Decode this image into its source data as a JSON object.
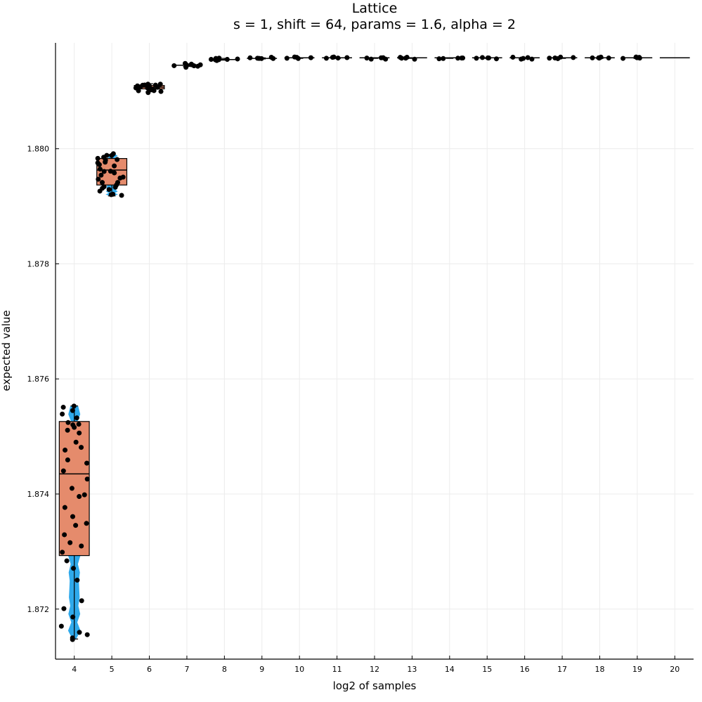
{
  "chart_data": {
    "type": "box",
    "title": "Lattice",
    "subtitle": "s = 1, shift = 64, params = 1.6, alpha = 2",
    "xlabel": "log2 of samples",
    "ylabel": "expected value",
    "categories": [
      "4",
      "5",
      "6",
      "7",
      "8",
      "9",
      "10",
      "11",
      "12",
      "13",
      "14",
      "15",
      "16",
      "17",
      "18",
      "19",
      "20"
    ],
    "ylim": [
      1.87113,
      1.88184
    ],
    "yticks": [
      "1.872",
      "1.874",
      "1.876",
      "1.878",
      "1.880"
    ],
    "grid": true,
    "colors": {
      "box_fill": "#e58b6c",
      "violin_fill": "#0a9ae8",
      "points": "#000000",
      "grid": "#ececec"
    },
    "boxes": [
      {
        "x": "4",
        "min": 1.87148,
        "q1": 1.87293,
        "median": 1.87435,
        "q3": 1.87526,
        "max": 1.87553
      },
      {
        "x": "5",
        "min": 1.87918,
        "q1": 1.87937,
        "median": 1.87963,
        "q3": 1.87983,
        "max": 1.8799
      },
      {
        "x": "6",
        "min": 1.88099,
        "q1": 1.88104,
        "median": 1.88107,
        "q3": 1.8811,
        "max": 1.88113
      },
      {
        "x": "7",
        "min": 1.88143,
        "q1": 1.88144,
        "median": 1.88145,
        "q3": 1.88146,
        "max": 1.88147
      },
      {
        "x": "8",
        "min": 1.88154,
        "q1": 1.88155,
        "median": 1.88155,
        "q3": 1.88156,
        "max": 1.88157
      },
      {
        "x": "9",
        "min": 1.88156,
        "q1": 1.88157,
        "median": 1.88157,
        "q3": 1.88157,
        "max": 1.88158
      },
      {
        "x": "10",
        "min": 1.88157,
        "q1": 1.88157,
        "median": 1.88158,
        "q3": 1.88158,
        "max": 1.88158
      },
      {
        "x": "11",
        "min": 1.88157,
        "q1": 1.88157,
        "median": 1.88158,
        "q3": 1.88158,
        "max": 1.88158
      },
      {
        "x": "12",
        "min": 1.88157,
        "q1": 1.88157,
        "median": 1.88158,
        "q3": 1.88158,
        "max": 1.88158
      },
      {
        "x": "13",
        "min": 1.88157,
        "q1": 1.88157,
        "median": 1.88158,
        "q3": 1.88158,
        "max": 1.88158
      },
      {
        "x": "14",
        "min": 1.88157,
        "q1": 1.88157,
        "median": 1.88158,
        "q3": 1.88158,
        "max": 1.88158
      },
      {
        "x": "15",
        "min": 1.88157,
        "q1": 1.88157,
        "median": 1.88158,
        "q3": 1.88158,
        "max": 1.88158
      },
      {
        "x": "16",
        "min": 1.88157,
        "q1": 1.88157,
        "median": 1.88158,
        "q3": 1.88158,
        "max": 1.88158
      },
      {
        "x": "17",
        "min": 1.88157,
        "q1": 1.88157,
        "median": 1.88158,
        "q3": 1.88158,
        "max": 1.88158
      },
      {
        "x": "18",
        "min": 1.88157,
        "q1": 1.88157,
        "median": 1.88158,
        "q3": 1.88158,
        "max": 1.88158
      },
      {
        "x": "19",
        "min": 1.88157,
        "q1": 1.88157,
        "median": 1.88158,
        "q3": 1.88158,
        "max": 1.88158
      },
      {
        "x": "20",
        "min": 1.88158,
        "q1": 1.88158,
        "median": 1.88158,
        "q3": 1.88158,
        "max": 1.88158
      }
    ],
    "points": {
      "4": [
        1.87553,
        1.8755,
        1.87545,
        1.8754,
        1.87532,
        1.87525,
        1.8752,
        1.87515,
        1.87505,
        1.8749,
        1.87475,
        1.87455,
        1.8744,
        1.87425,
        1.8741,
        1.87395,
        1.87378,
        1.8736,
        1.87345,
        1.8733,
        1.87315,
        1.873,
        1.87285,
        1.8727,
        1.8725,
        1.87215,
        1.872,
        1.87185,
        1.8717,
        1.8716,
        1.87155,
        1.8715,
        1.87148,
        1.8752,
        1.8751,
        1.8748,
        1.8746,
        1.874,
        1.8735,
        1.8731
      ],
      "5": [
        1.8799,
        1.87988,
        1.87985,
        1.87982,
        1.87978,
        1.87975,
        1.8797,
        1.87966,
        1.87962,
        1.87958,
        1.87955,
        1.8795,
        1.87946,
        1.87942,
        1.87938,
        1.87935,
        1.8793,
        1.87925,
        1.87922,
        1.87918,
        1.87987,
        1.8798,
        1.87972,
        1.8796,
        1.87948,
        1.8794,
        1.87932,
        1.87928,
        1.8792,
        1.87984
      ],
      "6": [
        1.88113,
        1.88112,
        1.88111,
        1.8811,
        1.88109,
        1.88108,
        1.88107,
        1.88106,
        1.88105,
        1.88104,
        1.88103,
        1.88102,
        1.88101,
        1.881,
        1.88099,
        1.88112,
        1.8811,
        1.88108,
        1.88106,
        1.88104
      ],
      "7": [
        1.88147,
        1.88146,
        1.88146,
        1.88145,
        1.88145,
        1.88144,
        1.88144,
        1.88143,
        1.88146,
        1.88145
      ],
      "8": [
        1.88157,
        1.88156,
        1.88156,
        1.88155,
        1.88155,
        1.88154,
        1.88156,
        1.88155
      ],
      "9": [
        1.88158,
        1.88157,
        1.88157,
        1.88157,
        1.88156,
        1.88157
      ],
      "10": [
        1.88158,
        1.88158,
        1.88157,
        1.88157,
        1.88158
      ],
      "11": [
        1.88158,
        1.88158,
        1.88157,
        1.88157,
        1.88158
      ],
      "12": [
        1.88158,
        1.88158,
        1.88157,
        1.88157,
        1.88158
      ],
      "13": [
        1.88158,
        1.88158,
        1.88157,
        1.88157,
        1.88158
      ],
      "14": [
        1.88158,
        1.88158,
        1.88157,
        1.88157,
        1.88158
      ],
      "15": [
        1.88158,
        1.88158,
        1.88157,
        1.88157,
        1.88158
      ],
      "16": [
        1.88158,
        1.88158,
        1.88157,
        1.88157,
        1.88158
      ],
      "17": [
        1.88158,
        1.88158,
        1.88157,
        1.88157,
        1.88158
      ],
      "18": [
        1.88158,
        1.88158,
        1.88157,
        1.88157,
        1.88158
      ],
      "19": [
        1.88158,
        1.88158,
        1.88157,
        1.88157,
        1.88158
      ]
    }
  }
}
